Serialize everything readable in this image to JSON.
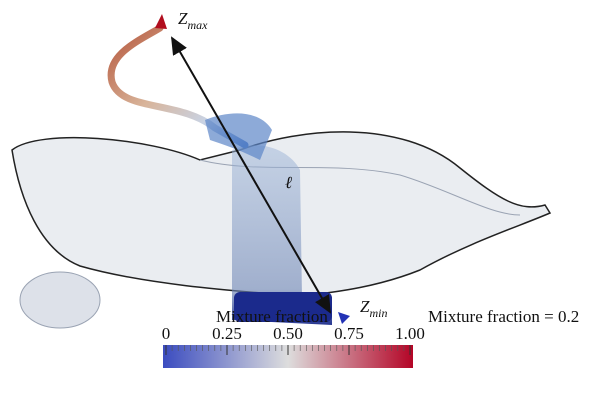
{
  "labels": {
    "z_max": {
      "symbol": "Z",
      "subscript": "max"
    },
    "z_min": {
      "symbol": "Z",
      "subscript": "min"
    },
    "length": "ℓ",
    "isosurface": "Mixture fraction = 0.2"
  },
  "colorbar": {
    "title": "Mixture fraction",
    "range": [
      0,
      1
    ],
    "colors": [
      "#3b4cc0",
      "#dddddd",
      "#b40426"
    ],
    "ticks": [
      0,
      0.25,
      {
        "value": 0.5,
        "label": "0.50"
      },
      0.75,
      {
        "value": 1,
        "label": "1.00"
      }
    ]
  }
}
